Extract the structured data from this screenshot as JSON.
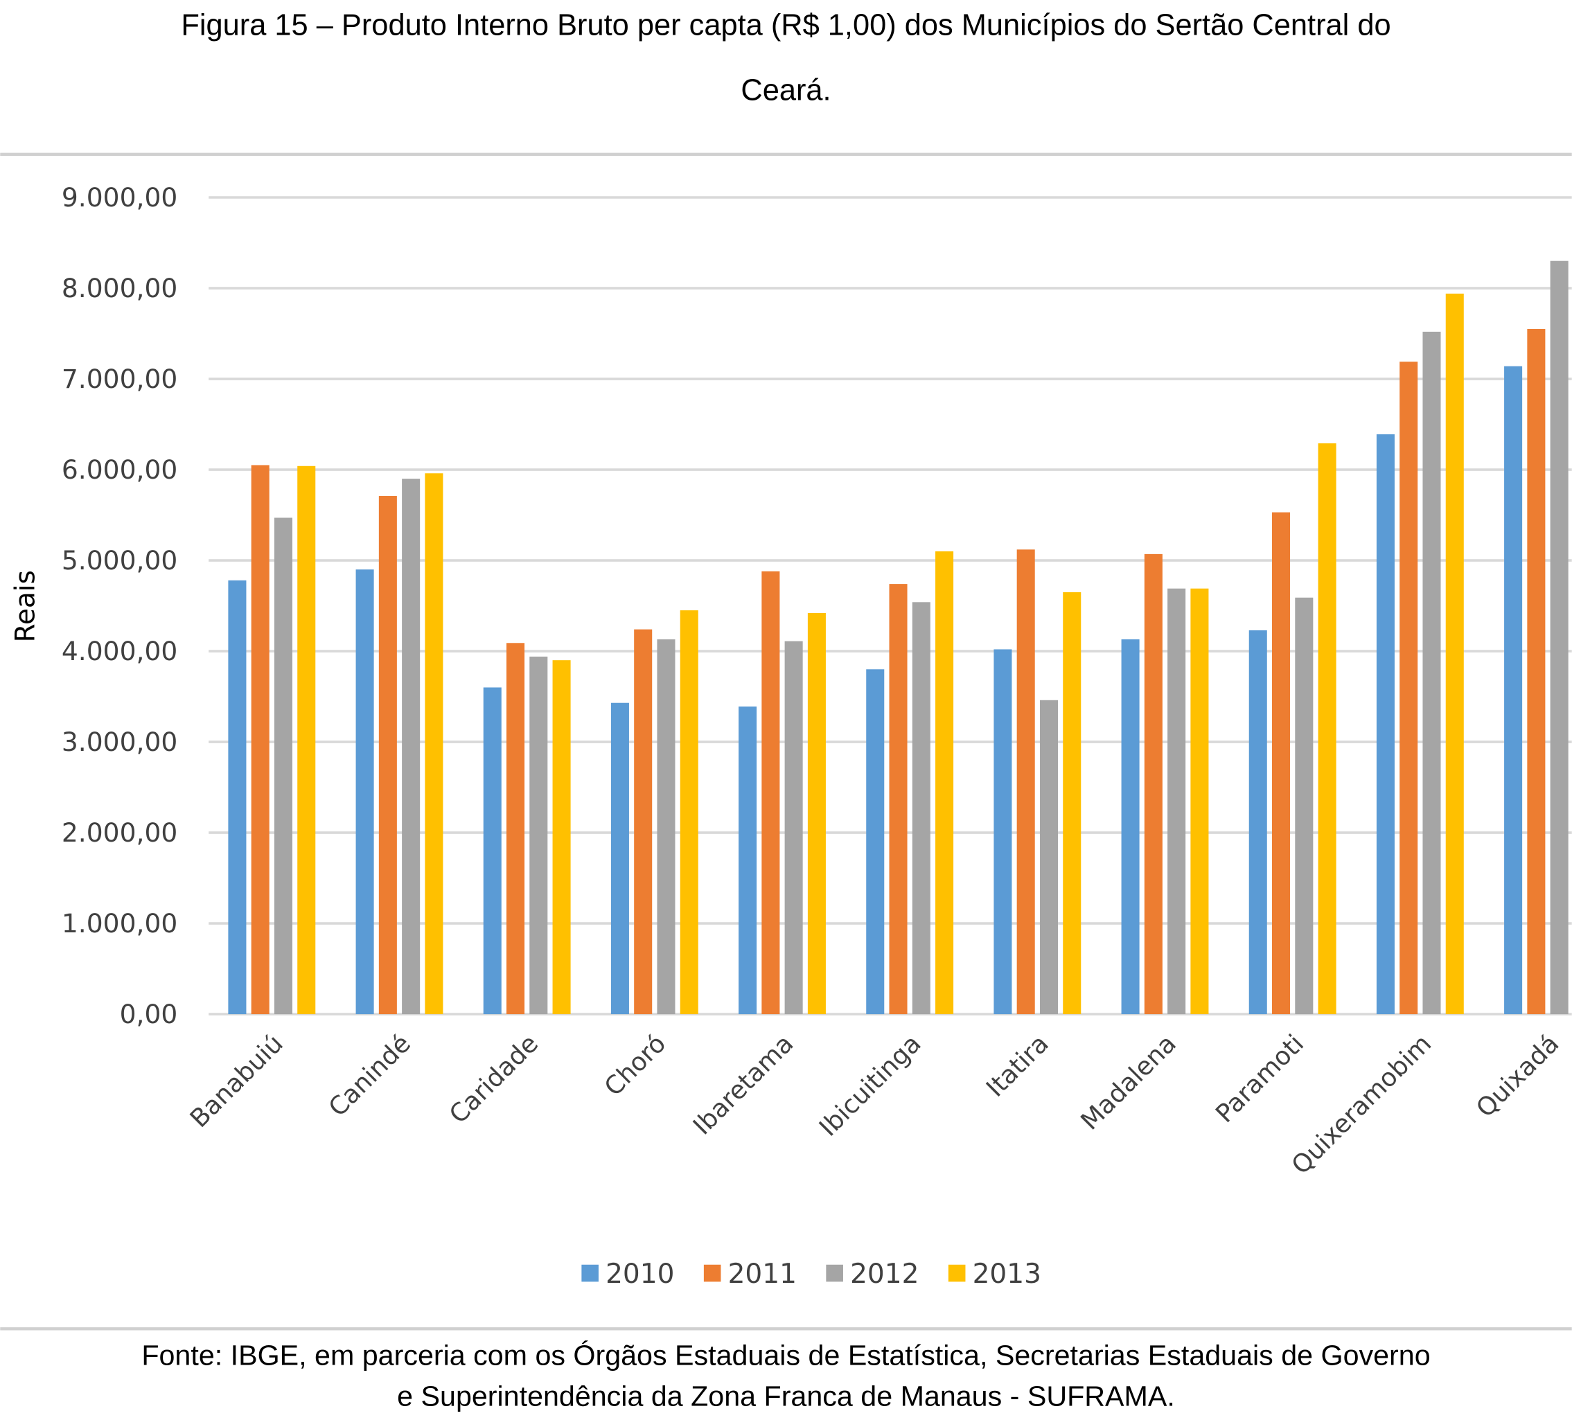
{
  "title_line1": "Figura 15 – Produto Interno Bruto per capta (R$ 1,00) dos Municípios do Sertão Central do",
  "title_line2": "Ceará.",
  "source_line1": "Fonte: IBGE, em parceria com os Órgãos Estaduais de Estatística, Secretarias Estaduais de Governo",
  "source_line2": "e Superintendência da Zona Franca de Manaus - SUFRAMA.",
  "chart_data": {
    "type": "bar",
    "title": "Produto Interno Bruto per capta (R$ 1,00) dos Municípios do Sertão Central do Ceará",
    "xlabel": "",
    "ylabel": "Reais",
    "ylim": [
      0,
      9000
    ],
    "yticks": [
      0,
      1000,
      2000,
      3000,
      4000,
      5000,
      6000,
      7000,
      8000,
      9000
    ],
    "ytick_labels": [
      "0,00",
      "1.000,00",
      "2.000,00",
      "3.000,00",
      "4.000,00",
      "5.000,00",
      "6.000,00",
      "7.000,00",
      "8.000,00",
      "9.000,00"
    ],
    "grid": true,
    "legend_position": "bottom",
    "categories": [
      "Banabuiú",
      "Canindé",
      "Caridade",
      "Choró",
      "Ibaretama",
      "Ibicuitinga",
      "Itatira",
      "Madalena",
      "Paramoti",
      "Quixeramobim",
      "Quixadá"
    ],
    "series": [
      {
        "name": "2010",
        "color": "#5B9BD5",
        "values": [
          4780,
          4900,
          3600,
          3430,
          3390,
          3800,
          4020,
          4130,
          4230,
          6390,
          7140
        ]
      },
      {
        "name": "2011",
        "color": "#ED7D31",
        "values": [
          6050,
          5710,
          4090,
          4240,
          4880,
          4740,
          5120,
          5070,
          5530,
          7190,
          7550
        ]
      },
      {
        "name": "2012",
        "color": "#A5A5A5",
        "values": [
          5470,
          5900,
          3940,
          4130,
          4110,
          4540,
          3460,
          4690,
          4590,
          7520,
          8300
        ]
      },
      {
        "name": "2013",
        "color": "#FFC000",
        "values": [
          6040,
          5960,
          3900,
          4450,
          4420,
          5100,
          4650,
          4690,
          6290,
          7940,
          null
        ]
      }
    ]
  }
}
